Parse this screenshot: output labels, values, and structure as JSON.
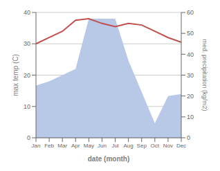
{
  "chart_data": {
    "type": "line",
    "xlabel": "date (month)",
    "ylabel": "max temp (C)",
    "y2label": "med. precipitation (kg/m2)",
    "categories": [
      "Jan",
      "Feb",
      "Mar",
      "Apr",
      "May",
      "Jun",
      "Jul",
      "Aug",
      "Sep",
      "Oct",
      "Nov",
      "Dec"
    ],
    "series": [
      {
        "type": "area",
        "axis": "y2",
        "color": "#b8c9e8",
        "values": [
          25,
          27,
          30,
          33,
          57,
          57,
          57,
          37,
          22,
          7,
          20,
          21
        ]
      },
      {
        "type": "line",
        "color": "#c0504d",
        "values": [
          30,
          32,
          34,
          37.5,
          38,
          36.5,
          35.5,
          36.5,
          36,
          34,
          32,
          30.5
        ]
      }
    ],
    "ylim": [
      0,
      40
    ],
    "yticks": [
      0,
      10,
      20,
      30,
      40
    ],
    "y2lim": [
      0,
      60
    ],
    "y2ticks": [
      0,
      10,
      20,
      30,
      40,
      50,
      60
    ],
    "grid": true
  }
}
